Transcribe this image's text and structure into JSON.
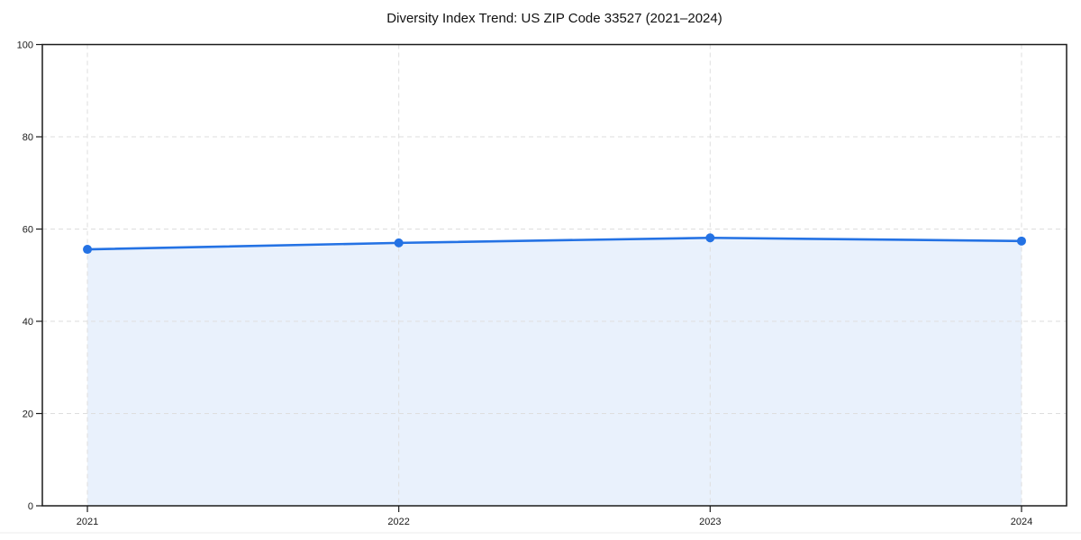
{
  "chart_data": {
    "type": "area",
    "title": "Diversity Index Trend: US ZIP Code 33527 (2021–2024)",
    "categories": [
      "2021",
      "2022",
      "2023",
      "2024"
    ],
    "series": [
      {
        "name": "Diversity Index",
        "values": [
          55.6,
          57.0,
          58.1,
          57.4
        ]
      }
    ],
    "xlabel": "",
    "ylabel": "",
    "ylim": [
      0,
      100
    ],
    "yticks": [
      0,
      20,
      40,
      60,
      80,
      100
    ],
    "grid": "dashed, horizontal and vertical",
    "legend": "none",
    "colors": {
      "line": "#2472e4",
      "marker": "#2472e4",
      "fill": "rgba(36,114,228,0.10)",
      "gridline": "#dedede",
      "spine": "#1a1a1a",
      "tick_label": "#1a1a1a",
      "title": "#111111"
    }
  }
}
